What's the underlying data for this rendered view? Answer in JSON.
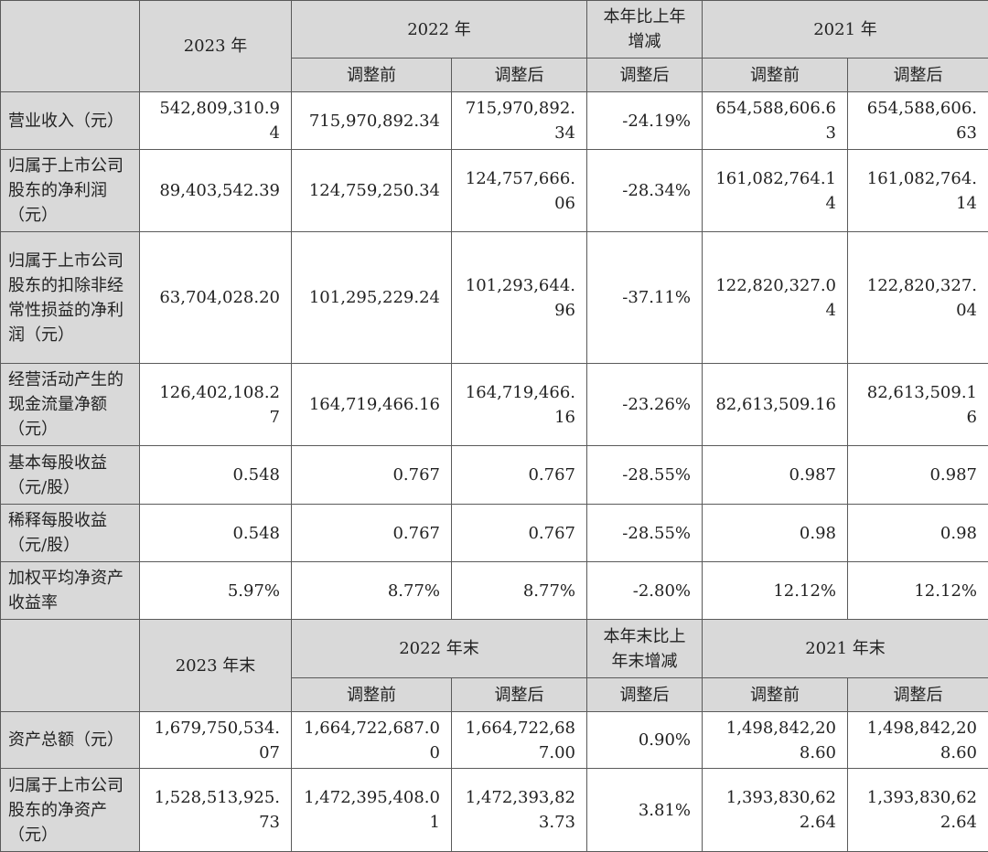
{
  "colors": {
    "header_bg": "#d9d9d9",
    "border": "#5a5a5a",
    "text": "#222222"
  },
  "section1": {
    "header": {
      "y2023": "2023 年",
      "y2022": "2022 年",
      "change": "本年比上年增减",
      "y2021": "2021 年",
      "sub": [
        "调整前",
        "调整后",
        "调整后",
        "调整前",
        "调整后"
      ]
    },
    "rows": [
      {
        "label": "营业收入（元）",
        "values": [
          "542,809,310.94",
          "715,970,892.34",
          "715,970,892.34",
          "-24.19%",
          "654,588,606.63",
          "654,588,606.63"
        ]
      },
      {
        "label": "归属于上市公司股东的净利润（元）",
        "values": [
          "89,403,542.39",
          "124,759,250.34",
          "124,757,666.06",
          "-28.34%",
          "161,082,764.14",
          "161,082,764.14"
        ]
      },
      {
        "label": "归属于上市公司股东的扣除非经常性损益的净利润（元）",
        "values": [
          "63,704,028.20",
          "101,295,229.24",
          "101,293,644.96",
          "-37.11%",
          "122,820,327.04",
          "122,820,327.04"
        ]
      },
      {
        "label": "经营活动产生的现金流量净额（元）",
        "values": [
          "126,402,108.27",
          "164,719,466.16",
          "164,719,466.16",
          "-23.26%",
          "82,613,509.16",
          "82,613,509.16"
        ]
      },
      {
        "label": "基本每股收益（元/股）",
        "values": [
          "0.548",
          "0.767",
          "0.767",
          "-28.55%",
          "0.987",
          "0.987"
        ]
      },
      {
        "label": "稀释每股收益（元/股）",
        "values": [
          "0.548",
          "0.767",
          "0.767",
          "-28.55%",
          "0.98",
          "0.98"
        ]
      },
      {
        "label": "加权平均净资产收益率",
        "values": [
          "5.97%",
          "8.77%",
          "8.77%",
          "-2.80%",
          "12.12%",
          "12.12%"
        ]
      }
    ]
  },
  "section2": {
    "header": {
      "y2023": "2023 年末",
      "y2022": "2022 年末",
      "change": "本年末比上年末增减",
      "y2021": "2021 年末",
      "sub": [
        "调整前",
        "调整后",
        "调整后",
        "调整前",
        "调整后"
      ]
    },
    "rows": [
      {
        "label": "资产总额（元）",
        "values": [
          "1,679,750,534.07",
          "1,664,722,687.00",
          "1,664,722,687.00",
          "0.90%",
          "1,498,842,208.60",
          "1,498,842,208.60"
        ]
      },
      {
        "label": "归属于上市公司股东的净资产（元）",
        "values": [
          "1,528,513,925.73",
          "1,472,395,408.01",
          "1,472,393,823.73",
          "3.81%",
          "1,393,830,622.64",
          "1,393,830,622.64"
        ]
      }
    ]
  }
}
